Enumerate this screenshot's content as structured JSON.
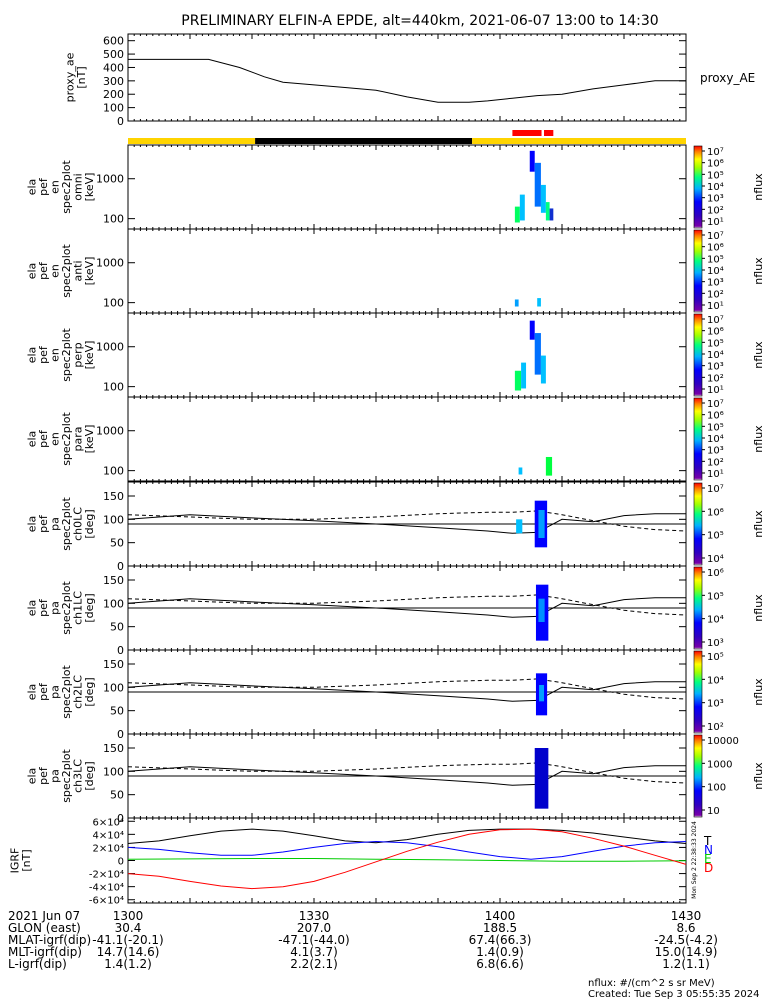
{
  "title": "PRELIMINARY ELFIN-A EPDE, alt=440km, 2021-06-07 13:00 to 14:30",
  "status_bar": {
    "segments": [
      {
        "t0": 0,
        "t1": 20.5,
        "color": "#ffd400"
      },
      {
        "t0": 20.5,
        "t1": 55.5,
        "color": "#000000"
      },
      {
        "t0": 55.5,
        "t1": 90,
        "color": "#ffd400"
      }
    ],
    "science": [
      {
        "t0": 62,
        "t1": 66.7,
        "color": "#ff0000"
      },
      {
        "t0": 67.1,
        "t1": 68.6,
        "color": "#ff0000"
      }
    ]
  },
  "panels": {
    "proxy_ae": {
      "ylabel_lines": [
        "proxy_ae",
        "[nT]"
      ],
      "legend": "proxy_AE",
      "ticks": [
        "0",
        "100",
        "200",
        "300",
        "400",
        "500",
        "600"
      ],
      "tick_values": [
        0,
        100,
        200,
        300,
        400,
        500,
        600
      ],
      "ylim": [
        0,
        650
      ],
      "t": [
        0,
        10,
        13,
        18,
        22,
        25,
        30,
        35,
        40,
        45,
        50,
        55,
        58,
        62,
        66,
        70,
        75,
        80,
        85,
        90
      ],
      "v": [
        460,
        460,
        460,
        400,
        330,
        290,
        270,
        250,
        230,
        180,
        140,
        140,
        150,
        170,
        190,
        200,
        240,
        270,
        300,
        300
      ]
    },
    "energy": [
      {
        "ylabel_lines": [
          "ela",
          "pef",
          "en",
          "spec2plot",
          "omni",
          "[keV]"
        ]
      },
      {
        "ylabel_lines": [
          "ela",
          "pef",
          "en",
          "spec2plot",
          "anti",
          "[keV]"
        ]
      },
      {
        "ylabel_lines": [
          "ela",
          "pef",
          "en",
          "spec2plot",
          "perp",
          "[keV]"
        ]
      },
      {
        "ylabel_lines": [
          "ela",
          "pef",
          "en",
          "spec2plot",
          "para",
          "[keV]"
        ]
      }
    ],
    "energy_ticks": [
      "100",
      "1000"
    ],
    "energy_tick_values": [
      100,
      1000
    ],
    "energy_ylim": [
      55,
      7000
    ],
    "pitch": [
      {
        "ylabel_lines": [
          "ela",
          "pef",
          "pa",
          "spec2plot",
          "ch0LC",
          "[deg]"
        ]
      },
      {
        "ylabel_lines": [
          "ela",
          "pef",
          "pa",
          "spec2plot",
          "ch1LC",
          "[deg]"
        ]
      },
      {
        "ylabel_lines": [
          "ela",
          "pef",
          "pa",
          "spec2plot",
          "ch2LC",
          "[deg]"
        ]
      },
      {
        "ylabel_lines": [
          "ela",
          "pef",
          "pa",
          "spec2plot",
          "ch3LC",
          "[deg]"
        ]
      }
    ],
    "pitch_ticks": [
      "0",
      "50",
      "100",
      "150"
    ],
    "pitch_tick_values": [
      0,
      50,
      100,
      150
    ],
    "pitch_ylim": [
      0,
      180
    ],
    "igrf": {
      "ylabel_lines": [
        "IGRF",
        "[nT]"
      ],
      "ticks": [
        "-6×10⁴",
        "-4×10⁴",
        "-2×10⁴",
        "0",
        "2×10⁴",
        "4×10⁴",
        "6×10⁴"
      ],
      "tick_values": [
        -60000,
        -40000,
        -20000,
        0,
        20000,
        40000,
        60000
      ],
      "ylim": [
        -65000,
        65000
      ],
      "legend": [
        {
          "label": "T",
          "color": "#000000"
        },
        {
          "label": "N",
          "color": "#0000ff"
        },
        {
          "label": "E",
          "color": "#00cc00"
        },
        {
          "label": "D",
          "color": "#ff0000"
        }
      ],
      "side_text": "Mon Sep  2 22:38:33 2024"
    }
  },
  "colorbars": {
    "label": "nflux",
    "energy": [
      "10¹",
      "10²",
      "10³",
      "10⁴",
      "10⁵",
      "10⁶",
      "10⁷"
    ],
    "ch0": [
      "10⁴",
      "10⁵",
      "10⁶",
      "10⁷"
    ],
    "ch1": [
      "10³",
      "10⁴",
      "10⁵",
      "10⁶"
    ],
    "ch2": [
      "10²",
      "10³",
      "10⁴",
      "10⁵"
    ],
    "ch3": [
      "10",
      "100",
      "1000",
      "10000"
    ]
  },
  "x_axis": {
    "row_labels": [
      "2021 Jun 07",
      "GLON (east)",
      "MLAT-igrf(dip)",
      "MLT-igrf(dip)",
      "L-igrf(dip)"
    ],
    "tick_values": [
      0,
      30,
      60,
      90
    ],
    "columns": [
      [
        "1300",
        "30.4",
        "-41.1(-20.1)",
        "14.7(14.6)",
        "1.4(1.2)"
      ],
      [
        "1330",
        "207.0",
        "-47.1(-44.0)",
        "4.1(3.7)",
        "2.2(2.1)"
      ],
      [
        "1400",
        "188.5",
        "67.4(66.3)",
        "1.4(0.9)",
        "6.8(6.6)"
      ],
      [
        "1430",
        "8.6",
        "-24.5(-4.2)",
        "15.0(14.9)",
        "1.2(1.1)"
      ]
    ]
  },
  "footer": {
    "units": "nflux: #/(cm^2 s sr MeV)",
    "created": "Created: Tue Sep  3 05:55:35 2024"
  },
  "chart_data": {
    "type": "heatmap",
    "title": "PRELIMINARY ELFIN-A EPDE, alt=440km, 2021-06-07 13:00 to 14:30",
    "xlim": [
      0,
      90
    ],
    "x_unit": "minutes after 13:00",
    "energy_spectrogram_blocks": [
      {
        "panel": 0,
        "t0": 64.8,
        "t1": 65.6,
        "e0": 1500,
        "e1": 5000,
        "color": "#0000ff"
      },
      {
        "panel": 0,
        "t0": 65.6,
        "t1": 66.6,
        "e0": 200,
        "e1": 2500,
        "color": "#0070ff"
      },
      {
        "panel": 0,
        "t0": 66.6,
        "t1": 67.4,
        "e0": 140,
        "e1": 700,
        "color": "#00c0ff"
      },
      {
        "panel": 0,
        "t0": 67.4,
        "t1": 68.0,
        "e0": 90,
        "e1": 260,
        "color": "#00ff80"
      },
      {
        "panel": 0,
        "t0": 62.4,
        "t1": 63.2,
        "e0": 80,
        "e1": 200,
        "color": "#00ff60"
      },
      {
        "panel": 0,
        "t0": 63.2,
        "t1": 64.0,
        "e0": 90,
        "e1": 400,
        "color": "#00c0ff"
      },
      {
        "panel": 0,
        "t0": 68.0,
        "t1": 68.6,
        "e0": 90,
        "e1": 180,
        "color": "#1030d0"
      },
      {
        "panel": 2,
        "t0": 64.8,
        "t1": 65.6,
        "e0": 1500,
        "e1": 4500,
        "color": "#0000ff"
      },
      {
        "panel": 2,
        "t0": 65.6,
        "t1": 66.6,
        "e0": 200,
        "e1": 2200,
        "color": "#0070ff"
      },
      {
        "panel": 2,
        "t0": 66.6,
        "t1": 67.4,
        "e0": 120,
        "e1": 600,
        "color": "#00c0ff"
      },
      {
        "panel": 2,
        "t0": 62.4,
        "t1": 63.4,
        "e0": 80,
        "e1": 250,
        "color": "#00ff60"
      },
      {
        "panel": 2,
        "t0": 63.4,
        "t1": 64.2,
        "e0": 90,
        "e1": 400,
        "color": "#00c0ff"
      },
      {
        "panel": 1,
        "t0": 62.4,
        "t1": 63.0,
        "e0": 80,
        "e1": 120,
        "color": "#00a0ff"
      },
      {
        "panel": 1,
        "t0": 66.0,
        "t1": 66.6,
        "e0": 80,
        "e1": 130,
        "color": "#00c0ff"
      },
      {
        "panel": 3,
        "t0": 67.4,
        "t1": 68.4,
        "e0": 75,
        "e1": 220,
        "color": "#00ff40"
      },
      {
        "panel": 3,
        "t0": 63.0,
        "t1": 63.6,
        "e0": 80,
        "e1": 120,
        "color": "#00c0ff"
      }
    ],
    "pitch_spectrogram_blocks": [
      {
        "panel": 0,
        "t0": 65.6,
        "t1": 67.6,
        "a0": 40,
        "a1": 140,
        "color": "#0000ff"
      },
      {
        "panel": 0,
        "t0": 66.2,
        "t1": 67.2,
        "a0": 60,
        "a1": 120,
        "color": "#00a0ff"
      },
      {
        "panel": 0,
        "t0": 62.6,
        "t1": 63.6,
        "a0": 70,
        "a1": 100,
        "color": "#00c0ff"
      },
      {
        "panel": 1,
        "t0": 65.8,
        "t1": 67.8,
        "a0": 20,
        "a1": 140,
        "color": "#0000ff"
      },
      {
        "panel": 1,
        "t0": 66.2,
        "t1": 67.2,
        "a0": 60,
        "a1": 110,
        "color": "#0090ff"
      },
      {
        "panel": 2,
        "t0": 65.8,
        "t1": 67.6,
        "a0": 40,
        "a1": 130,
        "color": "#0000ff"
      },
      {
        "panel": 2,
        "t0": 66.3,
        "t1": 67.1,
        "a0": 70,
        "a1": 105,
        "color": "#00a0ff"
      },
      {
        "panel": 3,
        "t0": 65.6,
        "t1": 67.8,
        "a0": 20,
        "a1": 150,
        "color": "#0000cc"
      }
    ],
    "loss_cone": {
      "t": [
        0,
        10,
        20,
        30,
        40,
        50,
        58,
        62,
        66,
        70,
        75,
        80,
        85,
        90
      ],
      "solid_upper": [
        100,
        110,
        103,
        97,
        90,
        82,
        75,
        70,
        72,
        100,
        95,
        108,
        112,
        112
      ],
      "solid_lower": [
        90,
        90,
        90,
        90,
        90,
        90,
        90,
        90,
        90,
        90,
        90,
        90,
        90,
        90
      ],
      "dashed": [
        110,
        105,
        100,
        100,
        105,
        112,
        115,
        115,
        118,
        110,
        97,
        85,
        78,
        75
      ]
    },
    "igrf_series": [
      {
        "name": "T",
        "color": "#000000",
        "t": [
          0,
          5,
          10,
          15,
          20,
          25,
          30,
          35,
          40,
          45,
          50,
          55,
          60,
          65,
          70,
          75,
          80,
          85,
          90
        ],
        "v": [
          26000,
          30000,
          38000,
          45000,
          48000,
          45000,
          38000,
          30000,
          27000,
          32000,
          40000,
          46000,
          48000,
          48000,
          46000,
          42000,
          36000,
          30000,
          26000
        ]
      },
      {
        "name": "N",
        "color": "#0000ff",
        "t": [
          0,
          5,
          10,
          15,
          20,
          25,
          30,
          35,
          40,
          45,
          50,
          55,
          60,
          65,
          70,
          75,
          80,
          85,
          90
        ],
        "v": [
          20000,
          17000,
          12000,
          8000,
          8000,
          13000,
          20000,
          26000,
          29000,
          27000,
          21000,
          13000,
          6000,
          2000,
          6000,
          14000,
          22000,
          27000,
          29000
        ]
      },
      {
        "name": "E",
        "color": "#00cc00",
        "t": [
          0,
          10,
          20,
          30,
          40,
          50,
          60,
          70,
          80,
          90
        ],
        "v": [
          2000,
          2500,
          3000,
          3000,
          2000,
          1000,
          0,
          -1000,
          -1000,
          -500
        ]
      },
      {
        "name": "D",
        "color": "#ff0000",
        "t": [
          0,
          5,
          10,
          15,
          20,
          25,
          30,
          35,
          40,
          45,
          50,
          55,
          60,
          65,
          70,
          75,
          80,
          85,
          90
        ],
        "v": [
          -20000,
          -24000,
          -32000,
          -39000,
          -43000,
          -40000,
          -32000,
          -18000,
          -2000,
          14000,
          28000,
          40000,
          47000,
          48000,
          44000,
          34000,
          22000,
          8000,
          -6000
        ]
      }
    ]
  }
}
